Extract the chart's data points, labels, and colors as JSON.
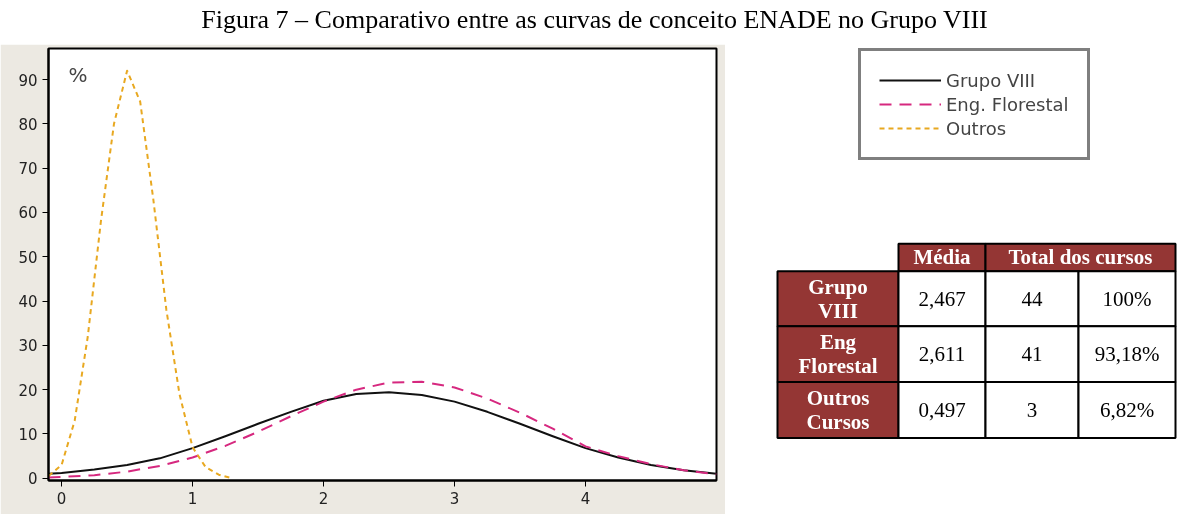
{
  "chart_data": [
    {
      "type": "line",
      "title": "Figura 7 – Comparativo entre as curvas de conceito ENADE no Grupo VIII",
      "ylabel": "%",
      "xlim": [
        -0.1,
        5
      ],
      "ylim": [
        -0.5,
        97
      ],
      "xticks": [
        0,
        1,
        2,
        3,
        4
      ],
      "yticks": [
        0,
        10,
        20,
        30,
        40,
        50,
        60,
        70,
        80,
        90
      ],
      "grid": false,
      "legend": "right",
      "series": [
        {
          "name": "Grupo VIII",
          "color": "#111111",
          "line_style": "solid",
          "x": [
            -0.1,
            0,
            0.25,
            0.5,
            0.75,
            1,
            1.25,
            1.5,
            1.75,
            2,
            2.25,
            2.5,
            2.75,
            3,
            3.25,
            3.5,
            3.75,
            4,
            4.25,
            4.5,
            4.75,
            5
          ],
          "values": [
            1,
            1.2,
            2,
            3,
            4.5,
            6.8,
            9.5,
            12.3,
            15,
            17.5,
            19,
            19.4,
            18.8,
            17.3,
            15,
            12.3,
            9.5,
            6.8,
            4.7,
            3,
            1.8,
            1
          ]
        },
        {
          "name": "Eng. Florestal",
          "color": "#d6287f",
          "line_style": "dashed",
          "x": [
            -0.1,
            0,
            0.25,
            0.5,
            0.75,
            1,
            1.25,
            1.5,
            1.75,
            2,
            2.25,
            2.5,
            2.75,
            3,
            3.25,
            3.5,
            3.75,
            4,
            4.25,
            4.5,
            4.75,
            5
          ],
          "values": [
            0.2,
            0.3,
            0.7,
            1.5,
            2.8,
            4.7,
            7.3,
            10.5,
            14,
            17.3,
            20,
            21.6,
            21.8,
            20.5,
            18,
            14.8,
            11.2,
            7.2,
            5,
            3.2,
            1.8,
            0.9
          ]
        },
        {
          "name": "Outros",
          "color": "#e8a820",
          "line_style": "dotted",
          "x": [
            -0.1,
            0,
            0.1,
            0.2,
            0.3,
            0.4,
            0.5,
            0.6,
            0.7,
            0.8,
            0.9,
            1,
            1.1,
            1.2,
            1.3
          ],
          "values": [
            0.5,
            3,
            13,
            32,
            58,
            80,
            92,
            85,
            63,
            38,
            19,
            7,
            2.5,
            0.8,
            0
          ]
        }
      ]
    },
    {
      "type": "other",
      "annotations": [
        "Média",
        "Total dos cursos",
        "Grupo VIII",
        "2,467",
        "44",
        "100%",
        "Eng Florestal",
        "2,611",
        "41",
        "93,18%",
        "Outros Cursos",
        "0,497",
        "3",
        "6,82%"
      ]
    }
  ]
}
